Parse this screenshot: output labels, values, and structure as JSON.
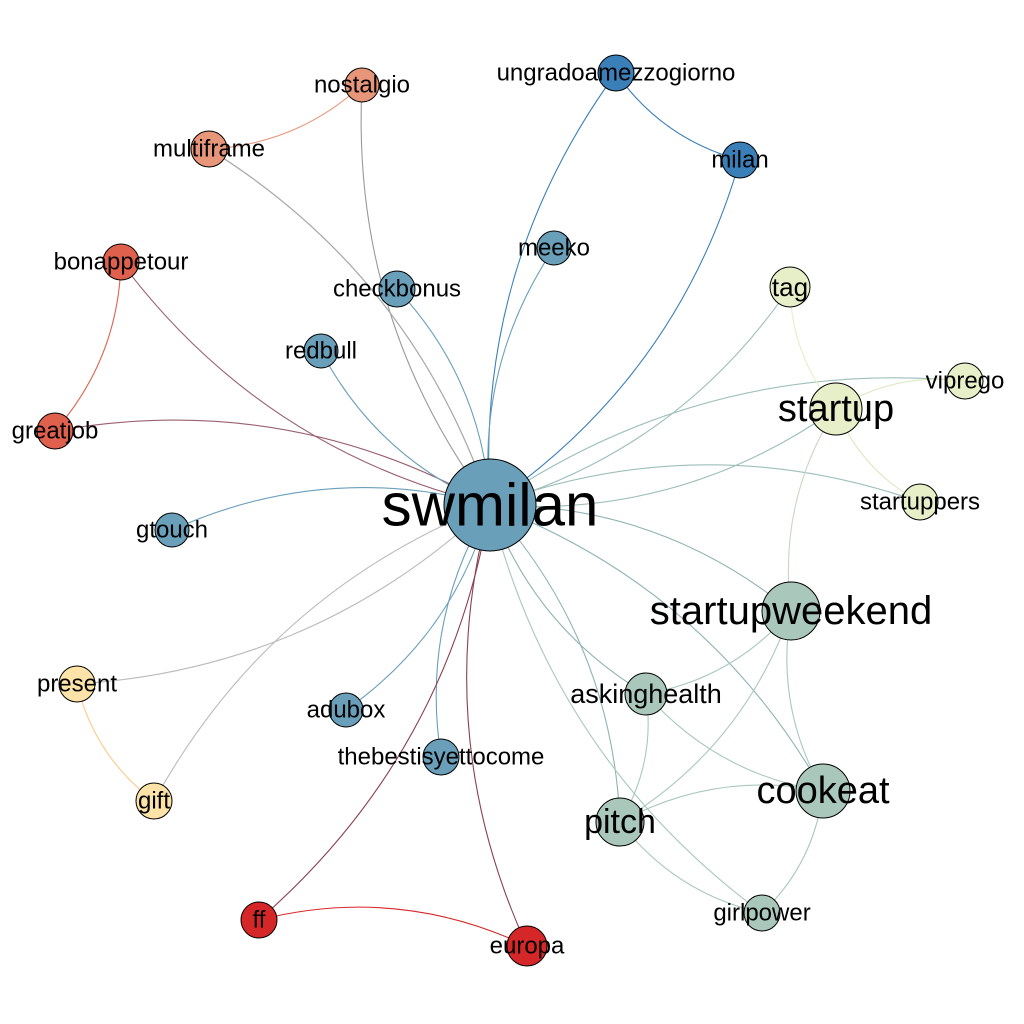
{
  "nodes": [
    {
      "label": "swmilan"
    },
    {
      "label": "nostalgio"
    },
    {
      "label": "multiframe"
    },
    {
      "label": "ungradoamezzogiorno"
    },
    {
      "label": "milan"
    },
    {
      "label": "bonappetour"
    },
    {
      "label": "greatjob"
    },
    {
      "label": "meeko"
    },
    {
      "label": "checkbonus"
    },
    {
      "label": "redbull"
    },
    {
      "label": "tag"
    },
    {
      "label": "viprego"
    },
    {
      "label": "startup"
    },
    {
      "label": "startuppers"
    },
    {
      "label": "gtouch"
    },
    {
      "label": "startupweekend"
    },
    {
      "label": "present"
    },
    {
      "label": "askinghealth"
    },
    {
      "label": "adubox"
    },
    {
      "label": "thebestisyettocome"
    },
    {
      "label": "cookeat"
    },
    {
      "label": "gift"
    },
    {
      "label": "pitch"
    },
    {
      "label": "girlpower"
    },
    {
      "label": "ff"
    },
    {
      "label": "europa"
    }
  ]
}
